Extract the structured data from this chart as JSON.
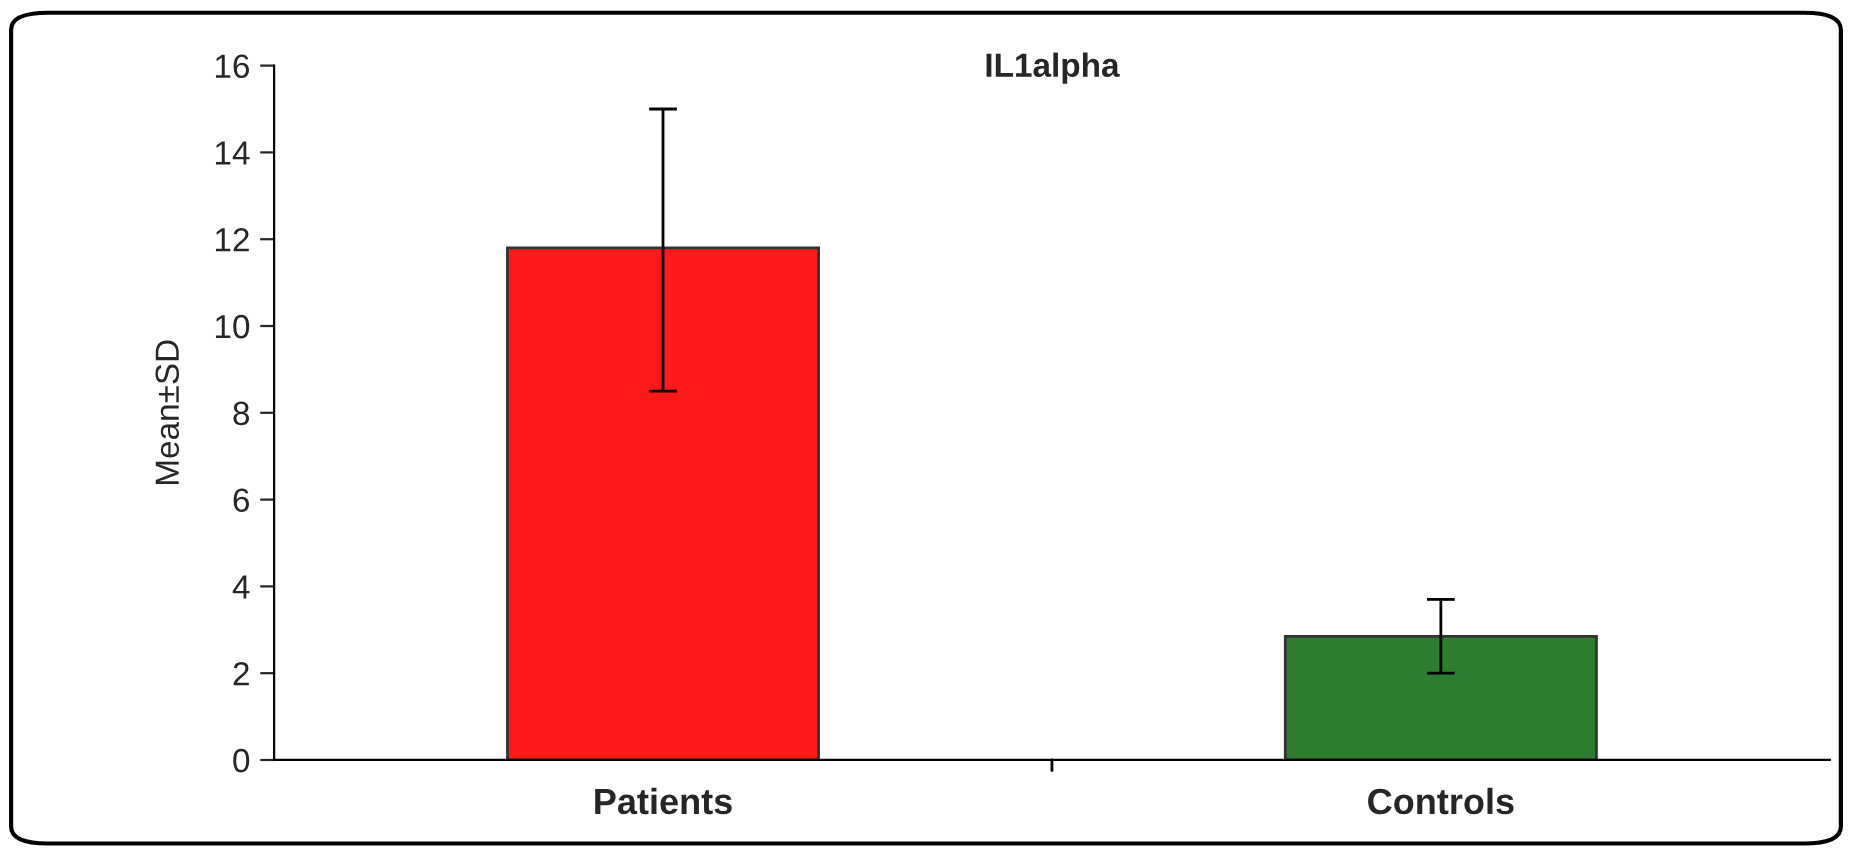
{
  "chart_data": {
    "type": "bar",
    "title": "IL1alpha",
    "ylabel": "Mean±SD",
    "categories": [
      "Patients",
      "Controls"
    ],
    "values": [
      11.8,
      2.85
    ],
    "colors": [
      "#ff1a1a",
      "#2e7d2e"
    ],
    "errors": [
      [
        8.5,
        15.0
      ],
      [
        2.0,
        3.7
      ]
    ],
    "ylim": [
      0,
      16
    ],
    "yticks": [
      0,
      2,
      4,
      6,
      8,
      10,
      12,
      14,
      16
    ],
    "grid": false
  }
}
